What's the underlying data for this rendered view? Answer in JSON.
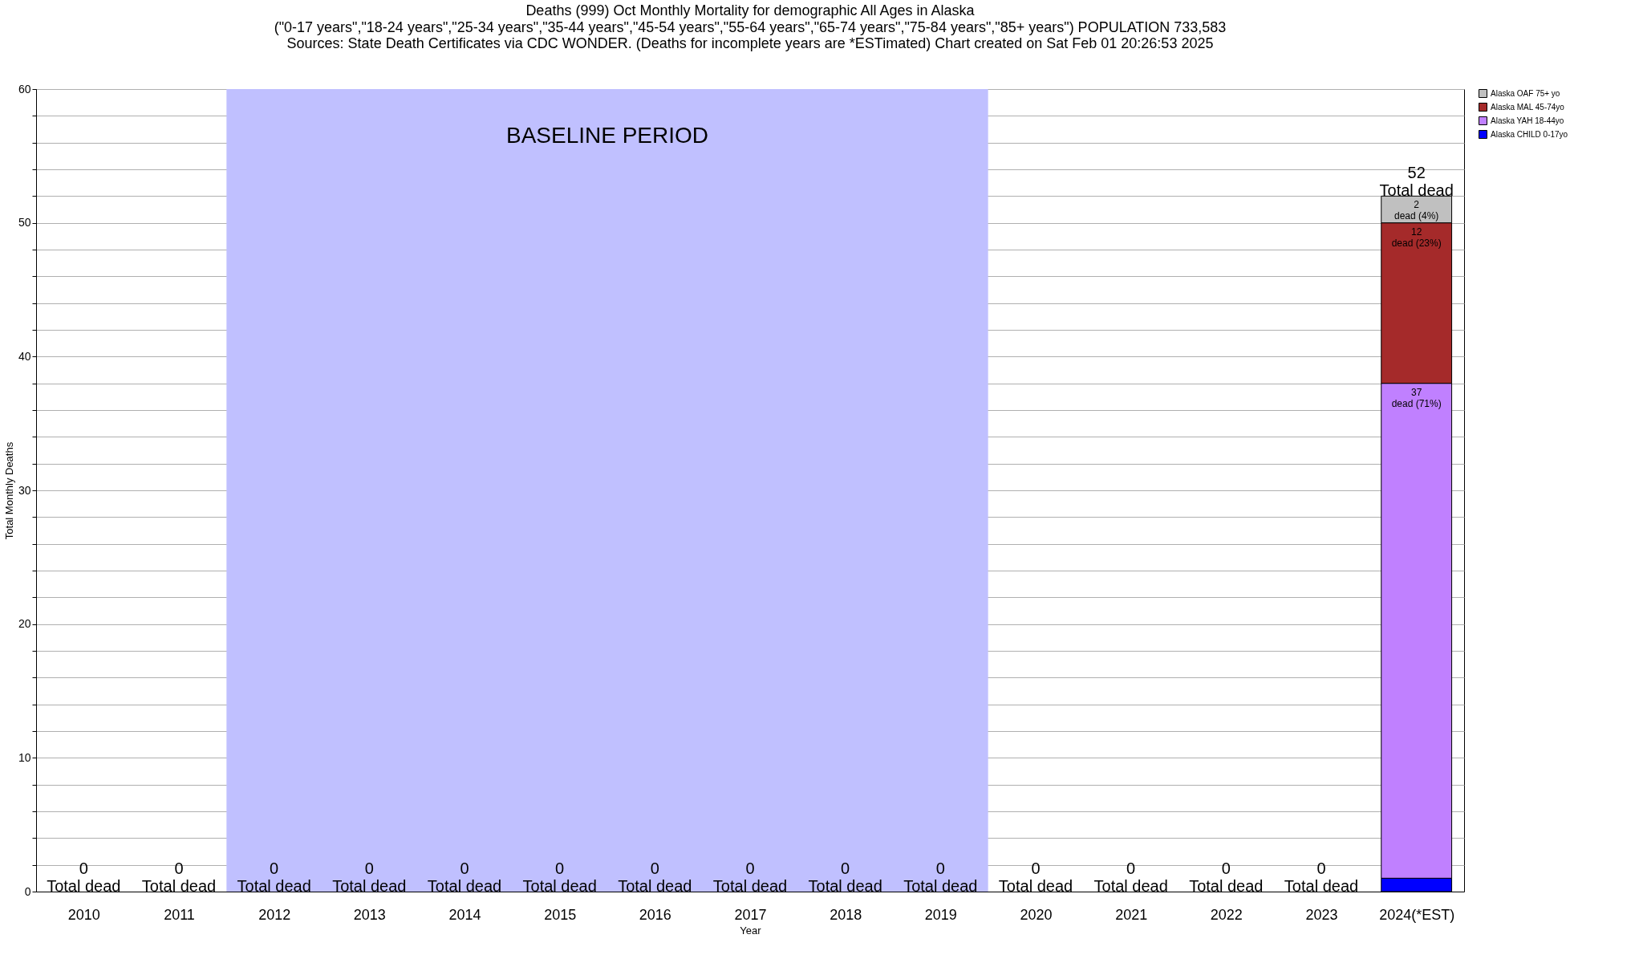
{
  "chart_data": {
    "type": "bar",
    "stacked": true,
    "title": "Deaths (999) Oct Monthly Mortality for demographic All Ages in Alaska",
    "subtitle": "(\"0-17 years\",\"18-24 years\",\"25-34 years\",\"35-44 years\",\"45-54 years\",\"55-64 years\",\"65-74 years\",\"75-84 years\",\"85+ years\") POPULATION 733,583\nSources: State Death Certificates via CDC WONDER. (Deaths for incomplete years are *ESTimated)                Chart created on Sat Feb 01 20:26:53 2025",
    "xlabel": "Year",
    "ylabel": "Total Monthly Deaths",
    "categories": [
      "2010",
      "2011",
      "2012",
      "2013",
      "2014",
      "2015",
      "2016",
      "2017",
      "2018",
      "2019",
      "2020",
      "2021",
      "2022",
      "2023",
      "2024(*EST)"
    ],
    "series": [
      {
        "name": "Alaska CHILD 0-17yo",
        "color": "#0000ff",
        "values": [
          0,
          0,
          0,
          0,
          0,
          0,
          0,
          0,
          0,
          0,
          0,
          0,
          0,
          0,
          1
        ]
      },
      {
        "name": "Alaska YAH 18-44yo",
        "color": "#c080ff",
        "values": [
          0,
          0,
          0,
          0,
          0,
          0,
          0,
          0,
          0,
          0,
          0,
          0,
          0,
          0,
          37
        ],
        "value_labels": [
          null,
          null,
          null,
          null,
          null,
          null,
          null,
          null,
          null,
          null,
          null,
          null,
          null,
          null,
          "37\ndead (71%)"
        ]
      },
      {
        "name": "Alaska MAL 45-74yo",
        "color": "#a52a2a",
        "values": [
          0,
          0,
          0,
          0,
          0,
          0,
          0,
          0,
          0,
          0,
          0,
          0,
          0,
          0,
          12
        ],
        "value_labels": [
          null,
          null,
          null,
          null,
          null,
          null,
          null,
          null,
          null,
          null,
          null,
          null,
          null,
          null,
          "12\ndead (23%)"
        ]
      },
      {
        "name": "Alaska OAF 75+ yo",
        "color": "#c0c0c0",
        "values": [
          0,
          0,
          0,
          0,
          0,
          0,
          0,
          0,
          0,
          0,
          0,
          0,
          0,
          0,
          2
        ],
        "value_labels": [
          null,
          null,
          null,
          null,
          null,
          null,
          null,
          null,
          null,
          null,
          null,
          null,
          null,
          null,
          "2\ndead (4%)"
        ]
      }
    ],
    "totals": [
      "0\nTotal dead",
      "0\nTotal dead",
      "0\nTotal dead",
      "0\nTotal dead",
      "0\nTotal dead",
      "0\nTotal dead",
      "0\nTotal dead",
      "0\nTotal dead",
      "0\nTotal dead",
      "0\nTotal dead",
      "0\nTotal dead",
      "0\nTotal dead",
      "0\nTotal dead",
      "0\nTotal dead",
      "52\nTotal dead"
    ],
    "bands": [
      {
        "axis": "x",
        "from": "2012",
        "to": "2019",
        "label": "BASELINE PERIOD",
        "color": "#c0c0ff"
      }
    ],
    "ylim": [
      0,
      60
    ],
    "yticks": [
      0,
      {
        "value": 2,
        "label": null
      },
      {
        "value": 4,
        "label": null
      },
      {
        "value": 6,
        "label": null
      },
      {
        "value": 8,
        "label": null
      },
      10,
      {
        "value": 12,
        "label": null
      },
      {
        "value": 14,
        "label": null
      },
      {
        "value": 16,
        "label": null
      },
      {
        "value": 18,
        "label": null
      },
      20,
      {
        "value": 22,
        "label": null
      },
      {
        "value": 24,
        "label": null
      },
      {
        "value": 26,
        "label": null
      },
      {
        "value": 28,
        "label": null
      },
      30,
      {
        "value": 32,
        "label": null
      },
      {
        "value": 34,
        "label": null
      },
      {
        "value": 36,
        "label": null
      },
      {
        "value": 38,
        "label": null
      },
      40,
      {
        "value": 42,
        "label": null
      },
      {
        "value": 44,
        "label": null
      },
      {
        "value": 46,
        "label": null
      },
      {
        "value": 48,
        "label": null
      },
      50,
      {
        "value": 52,
        "label": null
      },
      {
        "value": 54,
        "label": null
      },
      {
        "value": 56,
        "label": null
      },
      {
        "value": 58,
        "label": null
      },
      60
    ],
    "grid": "y",
    "legend": "top right"
  }
}
